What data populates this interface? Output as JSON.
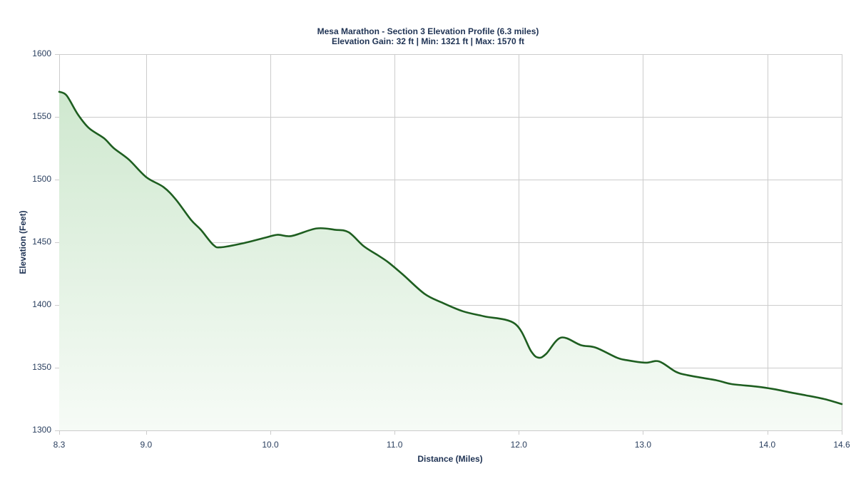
{
  "chart_data": {
    "type": "area",
    "title": "Mesa Marathon - Section 3 Elevation Profile (6.3 miles)",
    "subtitle": "Elevation Gain: 32 ft | Min: 1321 ft | Max: 1570 ft",
    "xlabel": "Distance (Miles)",
    "ylabel": "Elevation (Feet)",
    "xlim": [
      8.3,
      14.6
    ],
    "ylim": [
      1300,
      1600
    ],
    "x_ticks": [
      "8.3",
      "9.0",
      "10.0",
      "11.0",
      "12.0",
      "13.0",
      "14.0",
      "14.6"
    ],
    "x_tick_values": [
      8.3,
      9.0,
      10.0,
      11.0,
      12.0,
      13.0,
      14.0,
      14.6
    ],
    "y_ticks": [
      "1600",
      "1550",
      "1500",
      "1450",
      "1400",
      "1350",
      "1300"
    ],
    "y_tick_values": [
      1600,
      1550,
      1500,
      1450,
      1400,
      1350,
      1300
    ],
    "grid": true,
    "legend": null,
    "line_color": "#1e5e20",
    "fill_color_top": "#cfe8cf",
    "fill_color_bottom": "#f6fbf6",
    "series": [
      {
        "name": "Elevation",
        "x": [
          8.3,
          8.36,
          8.45,
          8.54,
          8.66,
          8.74,
          8.86,
          9.0,
          9.14,
          9.24,
          9.36,
          9.44,
          9.54,
          9.6,
          9.77,
          9.97,
          10.06,
          10.17,
          10.37,
          10.52,
          10.63,
          10.75,
          10.86,
          10.95,
          11.07,
          11.24,
          11.38,
          11.55,
          11.72,
          11.97,
          12.1,
          12.16,
          12.22,
          12.34,
          12.5,
          12.62,
          12.79,
          12.87,
          13.02,
          13.13,
          13.26,
          13.36,
          13.59,
          13.71,
          13.91,
          14.05,
          14.2,
          14.31,
          14.46,
          14.6
        ],
        "y": [
          1570,
          1567,
          1552,
          1541,
          1533,
          1525,
          1516,
          1502,
          1494,
          1484,
          1468,
          1460,
          1448,
          1446,
          1449,
          1454,
          1456,
          1455,
          1461,
          1460,
          1458,
          1447,
          1440,
          1434,
          1424,
          1409,
          1402,
          1395,
          1391,
          1385,
          1363,
          1358,
          1361,
          1374,
          1368,
          1366,
          1358,
          1356,
          1354,
          1355,
          1347,
          1344,
          1340,
          1337,
          1335,
          1333,
          1330,
          1328,
          1325,
          1321
        ]
      }
    ]
  }
}
